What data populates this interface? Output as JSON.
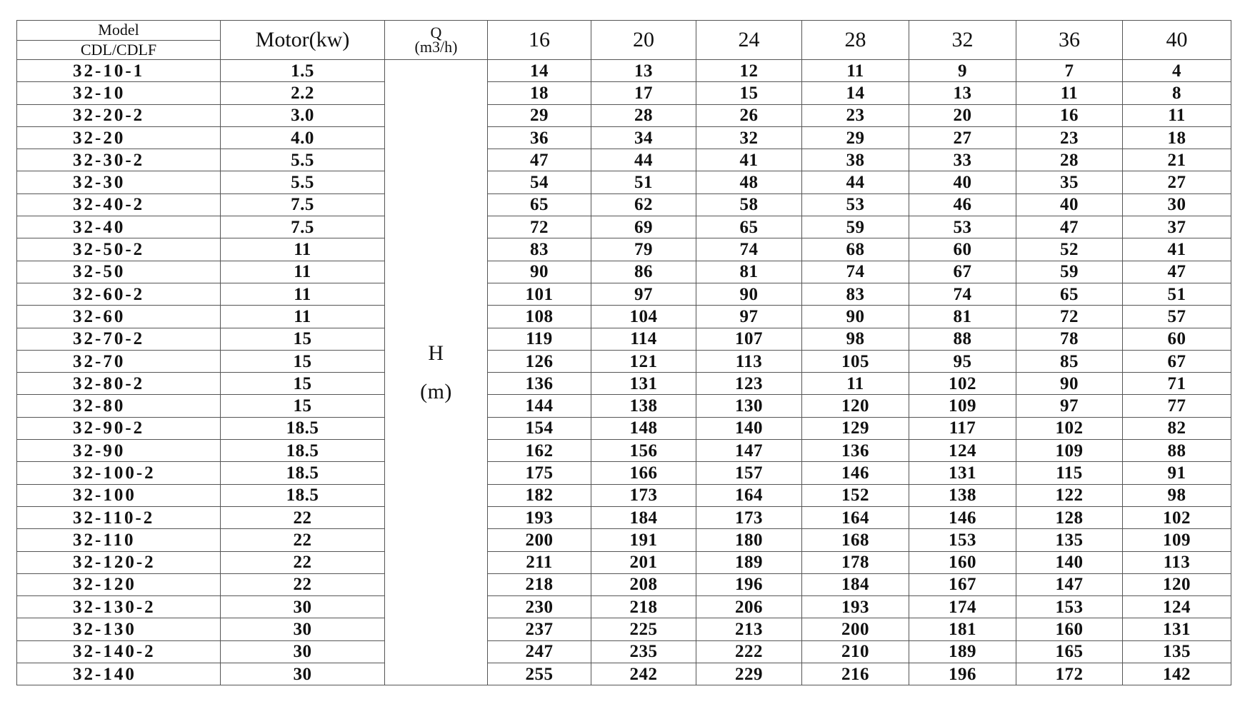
{
  "header": {
    "model_label": "Model",
    "model_sub_label": "CDL/CDLF",
    "motor_label": "Motor(kw)",
    "q_label": "Q",
    "q_unit": "(m3/h)",
    "flows": [
      "16",
      "20",
      "24",
      "28",
      "32",
      "36",
      "40"
    ]
  },
  "h_label": "H",
  "h_unit": "(m)",
  "rows": [
    {
      "model": "32-10-1",
      "motor": "1.5",
      "h": [
        "14",
        "13",
        "12",
        "11",
        "9",
        "7",
        "4"
      ]
    },
    {
      "model": "32-10",
      "motor": "2.2",
      "h": [
        "18",
        "17",
        "15",
        "14",
        "13",
        "11",
        "8"
      ]
    },
    {
      "model": "32-20-2",
      "motor": "3.0",
      "h": [
        "29",
        "28",
        "26",
        "23",
        "20",
        "16",
        "11"
      ]
    },
    {
      "model": "32-20",
      "motor": "4.0",
      "h": [
        "36",
        "34",
        "32",
        "29",
        "27",
        "23",
        "18"
      ]
    },
    {
      "model": "32-30-2",
      "motor": "5.5",
      "h": [
        "47",
        "44",
        "41",
        "38",
        "33",
        "28",
        "21"
      ]
    },
    {
      "model": "32-30",
      "motor": "5.5",
      "h": [
        "54",
        "51",
        "48",
        "44",
        "40",
        "35",
        "27"
      ]
    },
    {
      "model": "32-40-2",
      "motor": "7.5",
      "h": [
        "65",
        "62",
        "58",
        "53",
        "46",
        "40",
        "30"
      ]
    },
    {
      "model": "32-40",
      "motor": "7.5",
      "h": [
        "72",
        "69",
        "65",
        "59",
        "53",
        "47",
        "37"
      ]
    },
    {
      "model": "32-50-2",
      "motor": "11",
      "h": [
        "83",
        "79",
        "74",
        "68",
        "60",
        "52",
        "41"
      ]
    },
    {
      "model": "32-50",
      "motor": "11",
      "h": [
        "90",
        "86",
        "81",
        "74",
        "67",
        "59",
        "47"
      ]
    },
    {
      "model": "32-60-2",
      "motor": "11",
      "h": [
        "101",
        "97",
        "90",
        "83",
        "74",
        "65",
        "51"
      ]
    },
    {
      "model": "32-60",
      "motor": "11",
      "h": [
        "108",
        "104",
        "97",
        "90",
        "81",
        "72",
        "57"
      ]
    },
    {
      "model": "32-70-2",
      "motor": "15",
      "h": [
        "119",
        "114",
        "107",
        "98",
        "88",
        "78",
        "60"
      ]
    },
    {
      "model": "32-70",
      "motor": "15",
      "h": [
        "126",
        "121",
        "113",
        "105",
        "95",
        "85",
        "67"
      ]
    },
    {
      "model": "32-80-2",
      "motor": "15",
      "h": [
        "136",
        "131",
        "123",
        "11",
        "102",
        "90",
        "71"
      ]
    },
    {
      "model": "32-80",
      "motor": "15",
      "h": [
        "144",
        "138",
        "130",
        "120",
        "109",
        "97",
        "77"
      ]
    },
    {
      "model": "32-90-2",
      "motor": "18.5",
      "h": [
        "154",
        "148",
        "140",
        "129",
        "117",
        "102",
        "82"
      ]
    },
    {
      "model": "32-90",
      "motor": "18.5",
      "h": [
        "162",
        "156",
        "147",
        "136",
        "124",
        "109",
        "88"
      ]
    },
    {
      "model": "32-100-2",
      "motor": "18.5",
      "h": [
        "175",
        "166",
        "157",
        "146",
        "131",
        "115",
        "91"
      ]
    },
    {
      "model": "32-100",
      "motor": "18.5",
      "h": [
        "182",
        "173",
        "164",
        "152",
        "138",
        "122",
        "98"
      ]
    },
    {
      "model": "32-110-2",
      "motor": "22",
      "h": [
        "193",
        "184",
        "173",
        "164",
        "146",
        "128",
        "102"
      ]
    },
    {
      "model": "32-110",
      "motor": "22",
      "h": [
        "200",
        "191",
        "180",
        "168",
        "153",
        "135",
        "109"
      ]
    },
    {
      "model": "32-120-2",
      "motor": "22",
      "h": [
        "211",
        "201",
        "189",
        "178",
        "160",
        "140",
        "113"
      ]
    },
    {
      "model": "32-120",
      "motor": "22",
      "h": [
        "218",
        "208",
        "196",
        "184",
        "167",
        "147",
        "120"
      ]
    },
    {
      "model": "32-130-2",
      "motor": "30",
      "h": [
        "230",
        "218",
        "206",
        "193",
        "174",
        "153",
        "124"
      ]
    },
    {
      "model": "32-130",
      "motor": "30",
      "h": [
        "237",
        "225",
        "213",
        "200",
        "181",
        "160",
        "131"
      ]
    },
    {
      "model": "32-140-2",
      "motor": "30",
      "h": [
        "247",
        "235",
        "222",
        "210",
        "189",
        "165",
        "135"
      ]
    },
    {
      "model": "32-140",
      "motor": "30",
      "h": [
        "255",
        "242",
        "229",
        "216",
        "196",
        "172",
        "142"
      ]
    }
  ]
}
